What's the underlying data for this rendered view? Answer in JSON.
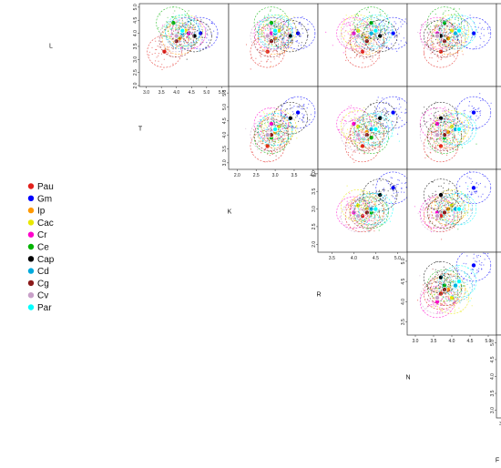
{
  "chart_data": {
    "type": "scatter",
    "variables": [
      "L",
      "T",
      "K",
      "R",
      "N",
      "F"
    ],
    "ticks": {
      "L": [
        2.0,
        2.5,
        3.0,
        3.5,
        4.0,
        4.5,
        5.0
      ],
      "T": [
        3.0,
        3.5,
        4.0,
        4.5,
        5.0,
        5.5
      ],
      "K": [
        2.0,
        2.5,
        3.0,
        3.5,
        4.0
      ],
      "R": [
        3.5,
        4.0,
        4.5,
        5.0
      ],
      "N": [
        3.0,
        3.5,
        4.0,
        4.5,
        5.0
      ],
      "F": [
        3.0,
        3.5,
        4.0,
        4.5,
        5.0,
        5.5,
        6.0
      ]
    },
    "ranges": {
      "L": [
        2.0,
        5.1
      ],
      "T": [
        2.8,
        5.7
      ],
      "K": [
        1.8,
        4.1
      ],
      "R": [
        3.2,
        5.2
      ],
      "N": [
        2.8,
        5.2
      ],
      "F": [
        2.8,
        6.2
      ]
    },
    "axis_tick_labels": {
      "L": [
        "2.0",
        "2.5",
        "3.0",
        "3.5",
        "4.0",
        "4.5",
        "5.0"
      ],
      "T": [
        "3.0",
        "3.5",
        "4.0",
        "4.5",
        "5.0",
        "5.5"
      ],
      "K": [
        "2.0",
        "2.5",
        "3.0",
        "3.5",
        "4.0"
      ],
      "R": [
        "3.5",
        "4.0",
        "4.5",
        "5.0"
      ],
      "N": [
        "3.0",
        "3.5",
        "4.0",
        "4.5",
        "5.0"
      ],
      "F": [
        "3.0",
        "3.5",
        "4.0",
        "4.5",
        "5.0",
        "5.5",
        "6.0"
      ]
    },
    "series": [
      {
        "name": "Pau",
        "color": "#e2211c",
        "centroid": {
          "L": 3.3,
          "T": 3.6,
          "K": 2.8,
          "R": 4.2,
          "N": 3.7,
          "F": 3.8
        }
      },
      {
        "name": "Gm",
        "color": "#0000ff",
        "centroid": {
          "L": 4.0,
          "T": 4.8,
          "K": 3.6,
          "R": 4.9,
          "N": 4.6,
          "F": 5.6
        }
      },
      {
        "name": "Ip",
        "color": "#ff9900",
        "centroid": {
          "L": 3.8,
          "T": 4.1,
          "K": 3.0,
          "R": 4.3,
          "N": 3.9,
          "F": 4.5
        }
      },
      {
        "name": "Cac",
        "color": "#e8e800",
        "centroid": {
          "L": 4.1,
          "T": 4.3,
          "K": 3.1,
          "R": 4.1,
          "N": 4.0,
          "F": 4.4
        }
      },
      {
        "name": "Cr",
        "color": "#ff00cc",
        "centroid": {
          "L": 4.0,
          "T": 4.4,
          "K": 2.9,
          "R": 4.0,
          "N": 3.6,
          "F": 4.0
        }
      },
      {
        "name": "Ce",
        "color": "#00b300",
        "centroid": {
          "L": 4.4,
          "T": 3.9,
          "K": 2.9,
          "R": 4.4,
          "N": 3.8,
          "F": 4.4
        }
      },
      {
        "name": "Cap",
        "color": "#000000",
        "centroid": {
          "L": 3.9,
          "T": 4.6,
          "K": 3.4,
          "R": 4.6,
          "N": 3.7,
          "F": 4.9
        }
      },
      {
        "name": "Cd",
        "color": "#00aadd",
        "centroid": {
          "L": 4.0,
          "T": 4.2,
          "K": 3.0,
          "R": 4.4,
          "N": 4.1,
          "F": 4.6
        }
      },
      {
        "name": "Cg",
        "color": "#8b1a1a",
        "centroid": {
          "L": 3.7,
          "T": 4.0,
          "K": 2.9,
          "R": 4.3,
          "N": 3.8,
          "F": 4.2
        }
      },
      {
        "name": "Cv",
        "color": "#c8a0c8",
        "centroid": {
          "L": 3.9,
          "T": 4.0,
          "K": 2.8,
          "R": 4.1,
          "N": 3.6,
          "F": 4.1
        }
      },
      {
        "name": "Par",
        "color": "#00ffff",
        "centroid": {
          "L": 4.1,
          "T": 4.2,
          "K": 3.0,
          "R": 4.5,
          "N": 4.2,
          "F": 4.8
        }
      }
    ],
    "legend_position": "left",
    "layout": "upper-triangular scatterplot matrix with variable names on the diagonal"
  }
}
